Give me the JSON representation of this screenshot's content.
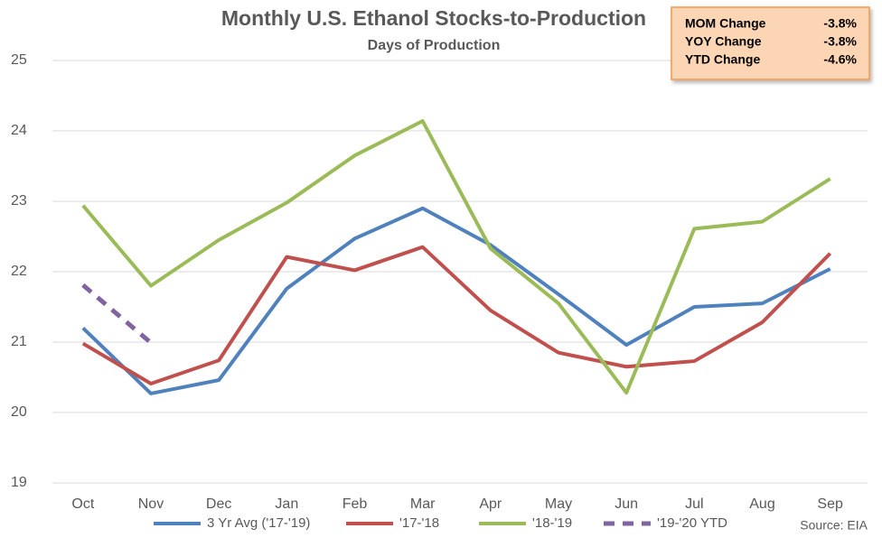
{
  "chart_data": {
    "type": "line",
    "title": "Monthly U.S. Ethanol Stocks-to-Production",
    "subtitle": "Days of Production",
    "categories": [
      "Oct",
      "Nov",
      "Dec",
      "Jan",
      "Feb",
      "Mar",
      "Apr",
      "May",
      "Jun",
      "Jul",
      "Aug",
      "Sep"
    ],
    "series": [
      {
        "name": "3 Yr Avg ('17-'19)",
        "color": "#4f81bd",
        "dashed": false,
        "values": [
          21.2,
          20.27,
          20.46,
          21.76,
          22.47,
          22.9,
          22.38,
          21.68,
          20.96,
          21.5,
          21.55,
          22.04
        ]
      },
      {
        "name": "'17-'18",
        "color": "#c0504d",
        "dashed": false,
        "values": [
          20.98,
          20.41,
          20.74,
          22.21,
          22.02,
          22.35,
          21.45,
          20.85,
          20.65,
          20.73,
          21.28,
          22.26
        ]
      },
      {
        "name": "'18-'19",
        "color": "#9bbb59",
        "dashed": false,
        "values": [
          22.94,
          21.8,
          22.45,
          22.98,
          23.65,
          24.14,
          22.33,
          21.55,
          20.28,
          22.61,
          22.71,
          23.32
        ]
      },
      {
        "name": "'19-'20 YTD",
        "color": "#8064a2",
        "dashed": true,
        "values": [
          21.81,
          20.99,
          null,
          null,
          null,
          null,
          null,
          null,
          null,
          null,
          null,
          null
        ]
      }
    ],
    "ylim": [
      19,
      25
    ],
    "yticks": [
      19,
      20,
      21,
      22,
      23,
      24,
      25
    ],
    "grid": true,
    "legend": "bottom",
    "source": "Source: EIA",
    "annotation_box": {
      "rows": [
        {
          "label": "MOM Change",
          "value": "-3.8%"
        },
        {
          "label": "YOY Change",
          "value": "-3.8%"
        },
        {
          "label": "YTD Change",
          "value": "-4.6%"
        }
      ]
    }
  }
}
